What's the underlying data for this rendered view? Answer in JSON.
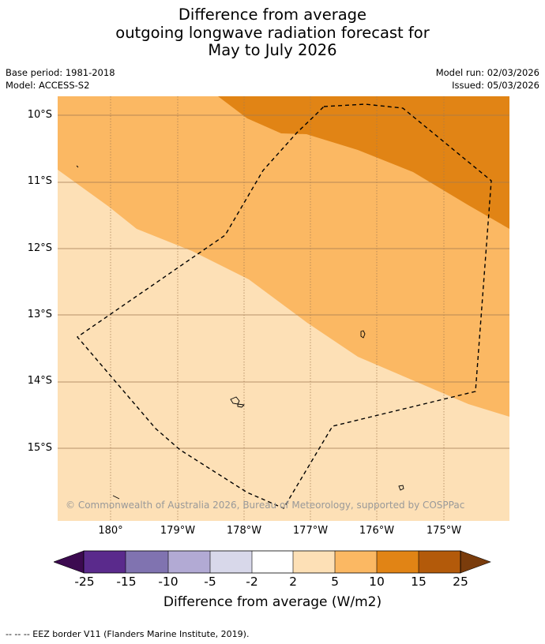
{
  "title": {
    "line1": "Difference from average",
    "line2": "outgoing longwave radiation forecast for",
    "line3": "May to July 2026"
  },
  "meta": {
    "base_period": "Base period: 1981-2018",
    "model": "Model: ACCESS-S2",
    "model_run": "Model run: 02/03/2026",
    "issued": "Issued: 05/03/2026"
  },
  "map": {
    "lat_labels": [
      "10°S",
      "11°S",
      "12°S",
      "13°S",
      "14°S",
      "15°S"
    ],
    "lon_labels": [
      "180°",
      "179°W",
      "178°W",
      "177°W",
      "176°W",
      "175°W"
    ],
    "copyright": "© Commonwealth of Australia 2026, Bureau of Meteorology, supported by COSPPac",
    "colors": {
      "band_2_5": "#fde0b6",
      "band_5_10": "#fbb863",
      "band_10_15": "#e18415",
      "grid": "#a07850",
      "eez": "#000000"
    }
  },
  "colorbar": {
    "ticks": [
      "-25",
      "-15",
      "-10",
      "-5",
      "-2",
      "2",
      "5",
      "10",
      "15",
      "25"
    ],
    "label": "Difference from average (W/m2)",
    "colors": [
      "#3c0a50",
      "#5a2a8c",
      "#8073b0",
      "#b2aad4",
      "#d8d8ea",
      "#ffffff",
      "#fde0b6",
      "#fbb863",
      "#e18415",
      "#b35a0a",
      "#7a3c0c"
    ]
  },
  "footer": {
    "legend": "--  --  -- EEZ border V11 (Flanders Marine Institute, 2019)."
  }
}
